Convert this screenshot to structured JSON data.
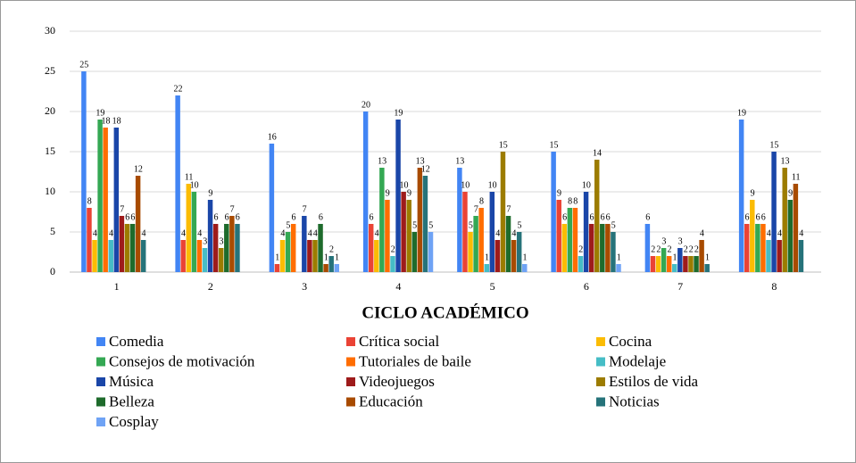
{
  "chart_data": {
    "type": "bar",
    "x_label": "CICLO ACADÉMICO",
    "categories": [
      "1",
      "2",
      "3",
      "4",
      "5",
      "6",
      "7",
      "8"
    ],
    "ylim": [
      0,
      30
    ],
    "yticks": [
      0,
      5,
      10,
      15,
      20,
      25,
      30
    ],
    "grid": true,
    "legend": "bottom",
    "series": [
      {
        "name": "Comedia",
        "color": "#4285f4",
        "values": [
          25,
          22,
          16,
          20,
          13,
          15,
          6,
          19
        ]
      },
      {
        "name": "Crítica social",
        "color": "#ea4335",
        "values": [
          8,
          4,
          1,
          6,
          10,
          9,
          2,
          6
        ]
      },
      {
        "name": "Cocina",
        "color": "#fbbc04",
        "values": [
          4,
          11,
          4,
          4,
          5,
          6,
          2,
          9
        ]
      },
      {
        "name": "Consejos de motivación",
        "color": "#34a853",
        "values": [
          19,
          10,
          5,
          13,
          7,
          8,
          3,
          6
        ]
      },
      {
        "name": "Tutoriales de baile",
        "color": "#ff6d01",
        "values": [
          18,
          4,
          6,
          9,
          8,
          8,
          2,
          6
        ]
      },
      {
        "name": "Modelaje",
        "color": "#46bdc6",
        "values": [
          4,
          3,
          0,
          2,
          1,
          2,
          1,
          4
        ]
      },
      {
        "name": "Música",
        "color": "#1a46a8",
        "values": [
          18,
          9,
          7,
          19,
          10,
          10,
          3,
          15
        ]
      },
      {
        "name": "Videojuegos",
        "color": "#9e1b1b",
        "values": [
          7,
          6,
          4,
          10,
          4,
          6,
          2,
          4
        ]
      },
      {
        "name": "Estilos de vida",
        "color": "#9c7c00",
        "values": [
          6,
          3,
          4,
          9,
          15,
          14,
          2,
          13
        ]
      },
      {
        "name": "Belleza",
        "color": "#1e6b2c",
        "values": [
          6,
          6,
          6,
          5,
          7,
          6,
          2,
          9
        ]
      },
      {
        "name": "Educación",
        "color": "#a84b00",
        "values": [
          12,
          7,
          1,
          13,
          4,
          6,
          4,
          11
        ]
      },
      {
        "name": "Noticias",
        "color": "#26737a",
        "values": [
          4,
          6,
          2,
          12,
          5,
          5,
          1,
          4
        ]
      },
      {
        "name": "Cosplay",
        "color": "#6fa3f5",
        "values": [
          0,
          0,
          1,
          5,
          1,
          1,
          0,
          0
        ]
      }
    ]
  }
}
